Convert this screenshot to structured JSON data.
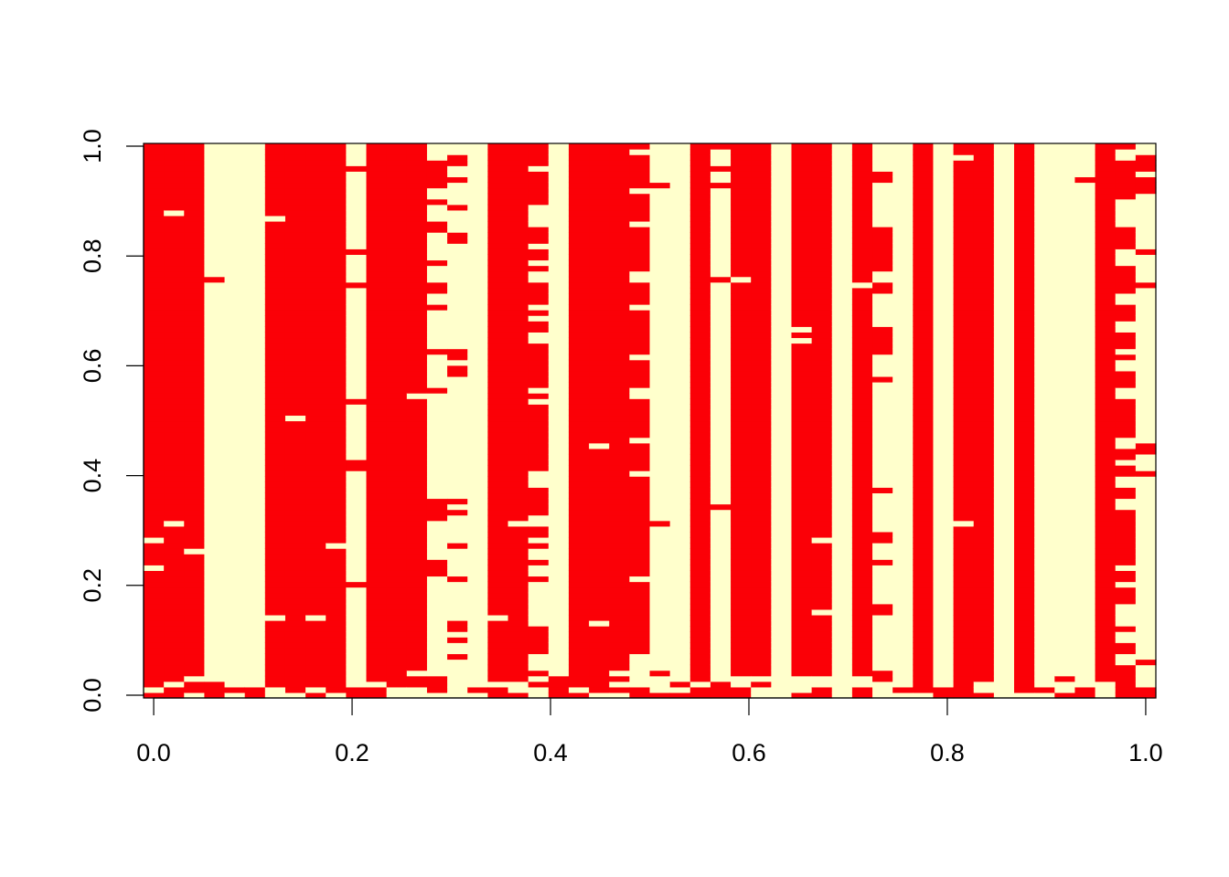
{
  "chart_data": {
    "type": "heatmap",
    "title": "",
    "xlabel": "",
    "ylabel": "",
    "xlim": [
      0,
      1
    ],
    "ylim": [
      0,
      1
    ],
    "grid": false,
    "legend": "none",
    "n_columns": 50,
    "n_rows": 100,
    "value_colors": {
      "0": "#FFFFCC",
      "1": "#FB0007"
    },
    "x_ticks": [
      "0.0",
      "0.2",
      "0.4",
      "0.6",
      "0.8",
      "1.0"
    ],
    "y_ticks": [
      "0.0",
      "0.2",
      "0.4",
      "0.6",
      "0.8",
      "1.0"
    ],
    "columns": [
      {
        "default": 1,
        "exceptions": [
          1,
          23,
          28
        ]
      },
      {
        "default": 1,
        "exceptions": [
          2,
          31,
          87
        ]
      },
      {
        "default": 1,
        "exceptions": [
          0,
          3,
          26
        ]
      },
      {
        "default": 0,
        "exceptions": [
          0,
          1,
          2,
          75
        ]
      },
      {
        "default": 0,
        "exceptions": [
          1
        ]
      },
      {
        "default": 0,
        "exceptions": [
          0,
          1
        ]
      },
      {
        "default": 1,
        "exceptions": [
          0,
          1,
          14,
          86
        ]
      },
      {
        "default": 1,
        "exceptions": [
          0,
          50
        ]
      },
      {
        "default": 1,
        "exceptions": [
          1,
          14
        ]
      },
      {
        "default": 1,
        "exceptions": [
          0,
          27
        ]
      },
      {
        "default": 0,
        "exceptions": [
          0,
          1,
          20,
          41,
          42,
          53,
          74,
          80,
          95
        ]
      },
      {
        "default": 1,
        "exceptions": [
          2
        ]
      },
      {
        "default": 1,
        "exceptions": [
          0,
          1
        ]
      },
      {
        "default": 1,
        "exceptions": [
          0,
          1,
          4,
          54
        ]
      },
      {
        "default": 0,
        "exceptions": [
          1,
          2,
          3,
          22,
          23,
          24,
          32,
          33,
          34,
          35,
          55,
          62,
          70,
          73,
          74,
          78,
          84,
          85,
          89,
          92,
          93,
          94,
          95,
          96
        ]
      },
      {
        "default": 0,
        "exceptions": [
          7,
          10,
          12,
          13,
          21,
          27,
          33,
          35,
          58,
          59,
          61,
          62,
          82,
          83,
          88,
          93,
          96,
          97
        ]
      },
      {
        "default": 0,
        "exceptions": [
          1
        ]
      },
      {
        "default": 1,
        "exceptions": [
          2,
          14
        ]
      },
      {
        "default": 1,
        "exceptions": [
          1,
          2,
          31
        ]
      },
      {
        "default": 1,
        "exceptions": [
          0,
          1,
          3,
          5,
          6,
          7,
          13,
          14,
          15,
          16,
          17,
          18,
          19,
          20,
          22,
          23,
          25,
          26,
          28,
          31,
          32,
          38,
          39,
          40,
          53,
          55,
          64,
          65,
          68,
          70,
          75,
          76,
          78,
          81,
          85,
          86,
          87,
          88,
          95
        ]
      },
      {
        "default": 0,
        "exceptions": [
          0,
          1,
          2,
          3
        ]
      },
      {
        "default": 1,
        "exceptions": [
          1
        ]
      },
      {
        "default": 1,
        "exceptions": [
          0,
          13,
          45
        ]
      },
      {
        "default": 1,
        "exceptions": [
          0,
          2,
          4
        ]
      },
      {
        "default": 1,
        "exceptions": [
          2,
          3,
          4,
          5,
          6,
          7,
          21,
          40,
          46,
          54,
          55,
          61,
          70,
          75,
          76,
          85,
          91,
          98
        ]
      },
      {
        "default": 0,
        "exceptions": [
          0,
          4,
          31,
          92
        ]
      },
      {
        "default": 0,
        "exceptions": [
          0,
          2
        ]
      },
      {
        "default": 1,
        "exceptions": [
          2
        ]
      },
      {
        "default": 0,
        "exceptions": [
          0,
          1,
          2,
          34,
          75,
          92,
          95,
          99
        ]
      },
      {
        "default": 1,
        "exceptions": [
          2,
          3,
          75
        ]
      },
      {
        "default": 1,
        "exceptions": [
          0,
          1,
          3
        ]
      },
      {
        "default": 0,
        "exceptions": []
      },
      {
        "default": 1,
        "exceptions": [
          1,
          2,
          3,
          64,
          66
        ]
      },
      {
        "default": 1,
        "exceptions": [
          2,
          3,
          15,
          28
        ]
      },
      {
        "default": 0,
        "exceptions": []
      },
      {
        "default": 1,
        "exceptions": [
          2,
          3,
          74
        ]
      },
      {
        "default": 0,
        "exceptions": [
          3,
          4,
          15,
          16,
          24,
          28,
          29,
          37,
          57,
          62,
          63,
          64,
          65,
          66,
          73,
          74,
          77,
          78,
          79,
          80,
          81,
          82,
          83,
          84,
          93,
          94
        ]
      },
      {
        "default": 0,
        "exceptions": [
          1
        ]
      },
      {
        "default": 1,
        "exceptions": [
          0
        ]
      },
      {
        "default": 0,
        "exceptions": [
          0,
          1
        ]
      },
      {
        "default": 1,
        "exceptions": [
          31,
          97
        ]
      },
      {
        "default": 1,
        "exceptions": [
          1,
          2
        ]
      },
      {
        "default": 0,
        "exceptions": []
      },
      {
        "default": 1,
        "exceptions": [
          0
        ]
      },
      {
        "default": 0,
        "exceptions": [
          1
        ]
      },
      {
        "default": 0,
        "exceptions": [
          0,
          3
        ]
      },
      {
        "default": 0,
        "exceptions": [
          0,
          1,
          93
        ]
      },
      {
        "default": 1,
        "exceptions": [
          0,
          1,
          2
        ]
      },
      {
        "default": 1,
        "exceptions": [
          6,
          7,
          10,
          11,
          13,
          14,
          15,
          16,
          20,
          23,
          34,
          35,
          38,
          39,
          42,
          45,
          46,
          54,
          55,
          59,
          60,
          62,
          66,
          67,
          71,
          72,
          78,
          79,
          80,
          85,
          86,
          87,
          88,
          89,
          97,
          98
        ]
      },
      {
        "default": 0,
        "exceptions": [
          0,
          1,
          6,
          40,
          44,
          45,
          74,
          80,
          91,
          92,
          93,
          95,
          96,
          97
        ]
      }
    ]
  }
}
